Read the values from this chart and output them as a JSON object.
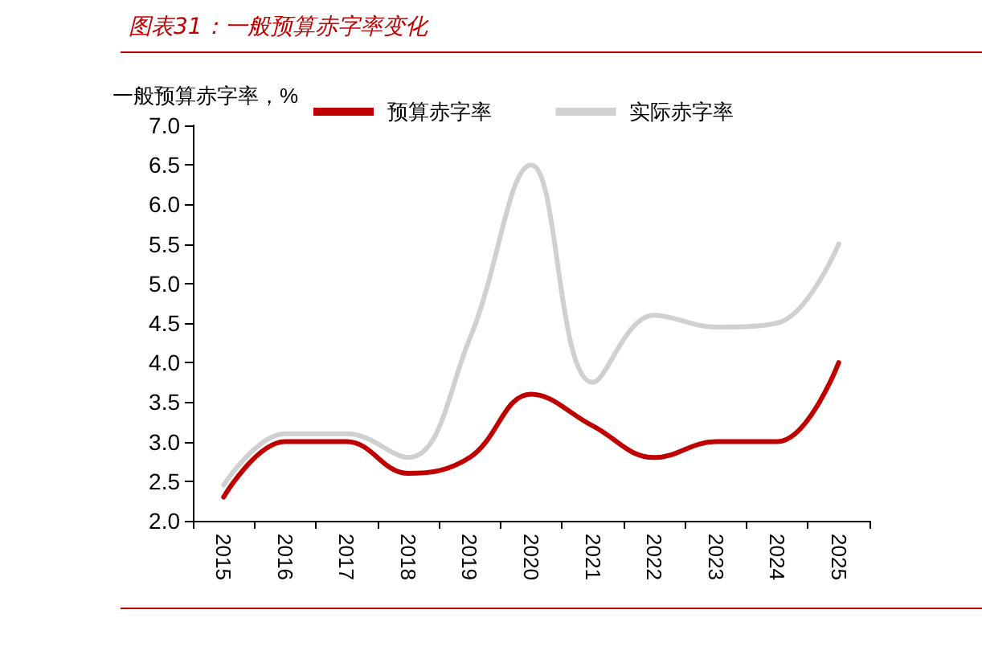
{
  "chart_data": {
    "type": "line",
    "title": "图表31：一般预算赤字率变化",
    "ylabel": "一般预算赤字率，%",
    "categories": [
      "2015",
      "2016",
      "2017",
      "2018",
      "2019",
      "2020",
      "2021",
      "2022",
      "2023",
      "2024",
      "2025"
    ],
    "series": [
      {
        "name": "预算赤字率",
        "color": "#c00000",
        "values": [
          2.3,
          3.0,
          3.0,
          2.6,
          2.8,
          3.6,
          3.2,
          2.8,
          3.0,
          3.0,
          4.0
        ]
      },
      {
        "name": "实际赤字率",
        "color": "#d0d0d0",
        "values": [
          2.45,
          3.1,
          3.1,
          2.8,
          4.3,
          6.5,
          3.75,
          4.6,
          4.45,
          4.5,
          5.5
        ]
      }
    ],
    "ylim": [
      2.0,
      7.0
    ],
    "yticks": [
      {
        "value": 2,
        "label": "2.0"
      },
      2.5,
      {
        "value": 3,
        "label": "3.0"
      },
      3.5,
      {
        "value": 4,
        "label": "4.0"
      },
      4.5,
      {
        "value": 5,
        "label": "5.0"
      },
      5.5,
      {
        "value": 6,
        "label": "6.0"
      },
      6.5,
      {
        "value": 7,
        "label": "7.0"
      }
    ],
    "grid": false,
    "legend": "top",
    "marker": "none",
    "line_style": "solid"
  }
}
